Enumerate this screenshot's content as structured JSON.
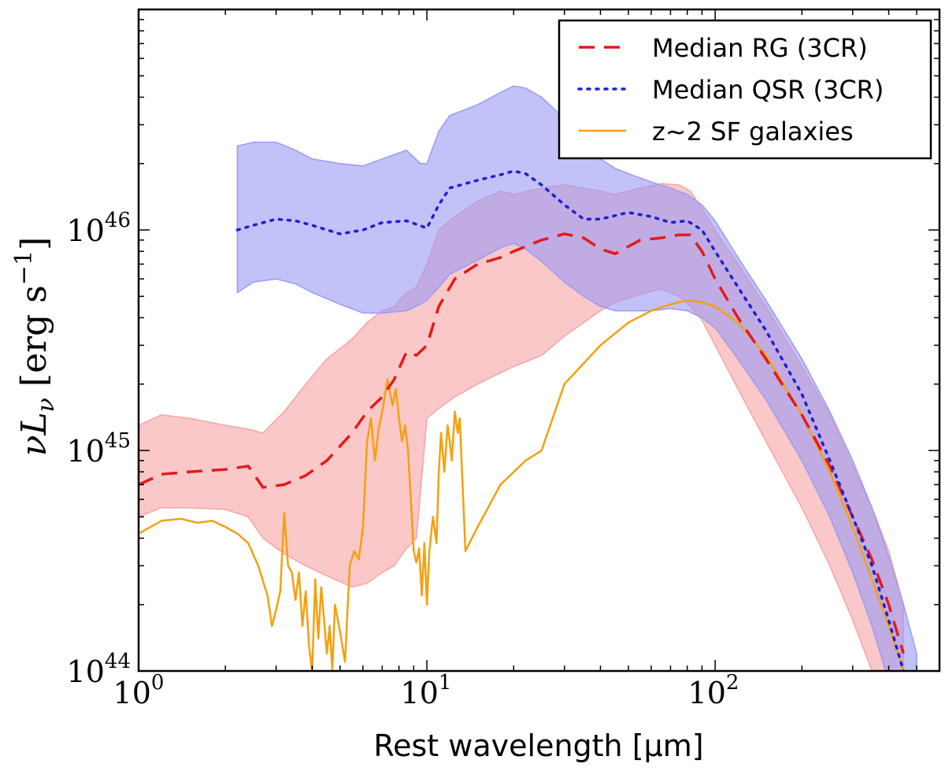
{
  "chart_data": {
    "type": "line",
    "xscale": "log",
    "yscale": "log",
    "xlim": [
      1,
      600
    ],
    "ylim": [
      1e+44,
      1e+47
    ],
    "xlabel": "Rest wavelength [μm]",
    "ylabel": "νL",
    "ylabel_sub": "ν",
    "ylabel_units": " [erg s",
    "ylabel_units_exp": "−1",
    "ylabel_units_close": "]",
    "xtick_labels": [
      {
        "value": 1,
        "base": "10",
        "exp": "0"
      },
      {
        "value": 10,
        "base": "10",
        "exp": "1"
      },
      {
        "value": 100,
        "base": "10",
        "exp": "2"
      }
    ],
    "ytick_labels": [
      {
        "value": 1e+44,
        "base": "10",
        "exp": "44"
      },
      {
        "value": 1e+45,
        "base": "10",
        "exp": "45"
      },
      {
        "value": 1e+46,
        "base": "10",
        "exp": "46"
      }
    ],
    "legend_position": "top-right",
    "colors": {
      "rg": "#e41a1c",
      "rg_band": "#f7a3a3",
      "qsr": "#1f1fd6",
      "qsr_band": "#9a9af5",
      "sf": "#f5a00f"
    },
    "series": [
      {
        "name": "Median RG (3CR)",
        "style": "dashed",
        "color_key": "rg",
        "x": [
          1,
          1.2,
          1.5,
          2,
          2.4,
          2.7,
          3.2,
          3.8,
          4.5,
          5.5,
          6.2,
          7,
          7.7,
          8.5,
          9.2,
          10,
          11,
          12.5,
          15,
          18,
          20,
          25,
          30,
          35,
          40,
          45,
          55,
          65,
          75,
          82,
          90,
          100,
          120,
          150,
          200,
          250,
          300,
          350,
          400,
          450
        ],
        "values": [
          7e+44,
          7.8e+44,
          8e+44,
          8.2e+44,
          8.5e+44,
          6.8e+44,
          7e+44,
          7.7e+44,
          9e+44,
          1.2e+45,
          1.5e+45,
          1.75e+45,
          2.1e+45,
          2.8e+45,
          2.7e+45,
          3e+45,
          4.5e+45,
          6e+45,
          7e+45,
          7.5e+45,
          8e+45,
          9e+45,
          9.6e+45,
          9.2e+45,
          8.2e+45,
          7.8e+45,
          9e+45,
          9.2e+45,
          9.5e+45,
          9.5e+45,
          8e+45,
          6e+45,
          4e+45,
          2.6e+45,
          1.45e+45,
          8.5e+44,
          5e+44,
          3.2e+44,
          2e+44,
          1.2e+44
        ]
      },
      {
        "name": "Median QSR (3CR)",
        "style": "dotted",
        "color_key": "qsr",
        "x": [
          2.2,
          2.5,
          3,
          3.5,
          4,
          5,
          6,
          7,
          8.5,
          10,
          11,
          12,
          15,
          18,
          20,
          22,
          25,
          30,
          35,
          40,
          50,
          60,
          70,
          80,
          90,
          100,
          120,
          150,
          200,
          250,
          300,
          350,
          400,
          450
        ],
        "values": [
          1e+46,
          1.05e+46,
          1.12e+46,
          1.1e+46,
          1.05e+46,
          9.6e+45,
          1e+46,
          1.08e+46,
          1.1e+46,
          1.02e+46,
          1.3e+46,
          1.55e+46,
          1.68e+46,
          1.78e+46,
          1.85e+46,
          1.8e+46,
          1.6e+46,
          1.3e+46,
          1.12e+46,
          1.12e+46,
          1.2e+46,
          1.15e+46,
          1.08e+46,
          1.1e+46,
          1e+46,
          8e+45,
          5.5e+45,
          3.5e+45,
          1.8e+45,
          9e+44,
          5e+44,
          3e+44,
          1.7e+44,
          1e+44
        ]
      },
      {
        "name": "z~2 SF galaxies",
        "style": "solid",
        "color_key": "sf",
        "x": [
          1,
          1.2,
          1.4,
          1.6,
          1.8,
          2,
          2.2,
          2.4,
          2.6,
          2.8,
          2.9,
          3,
          3.1,
          3.2,
          3.3,
          3.4,
          3.5,
          3.6,
          3.7,
          3.8,
          3.9,
          4,
          4.1,
          4.2,
          4.3,
          4.5,
          4.6,
          4.7,
          4.8,
          5,
          5.2,
          5.4,
          5.6,
          5.8,
          6,
          6.2,
          6.4,
          6.6,
          6.8,
          7,
          7.3,
          7.6,
          7.8,
          8,
          8.2,
          8.4,
          8.6,
          8.8,
          9,
          9.2,
          9.4,
          9.6,
          9.8,
          10,
          10.2,
          10.5,
          10.8,
          11,
          11.2,
          11.5,
          11.8,
          12,
          12.2,
          12.5,
          12.8,
          13,
          13.3,
          13.6,
          15,
          18,
          22,
          25,
          30,
          40,
          50,
          60,
          70,
          80,
          90,
          100,
          120,
          150,
          200,
          250,
          300,
          350,
          400,
          450
        ],
        "values": [
          4.2e+44,
          4.8e+44,
          4.9e+44,
          4.7e+44,
          4.8e+44,
          4.5e+44,
          4.2e+44,
          3.8e+44,
          3e+44,
          2.2e+44,
          1.6e+44,
          1.9e+44,
          2.3e+44,
          5.2e+44,
          3e+44,
          2.8e+44,
          2.1e+44,
          2.8e+44,
          1.6e+44,
          2.3e+44,
          1.3e+44,
          1e+44,
          2.6e+44,
          1.4e+44,
          2.4e+44,
          1.2e+44,
          1.6e+44,
          1e+44,
          2e+44,
          1.5e+44,
          1.1e+44,
          3e+44,
          3.5e+44,
          3.2e+44,
          4.5e+44,
          1.1e+45,
          1.4e+45,
          9e+44,
          1.25e+45,
          1.5e+45,
          2.1e+45,
          1.6e+45,
          1.9e+45,
          1.4e+45,
          1.1e+45,
          1.3e+45,
          1e+45,
          6e+44,
          3.5e+44,
          3.1e+44,
          3.6e+44,
          2.2e+44,
          3.8e+44,
          2e+44,
          3.5e+44,
          5e+44,
          3.8e+44,
          8e+44,
          1.2e+45,
          8e+44,
          1.3e+45,
          1.1e+45,
          9e+44,
          1.5e+45,
          1.2e+45,
          1.4e+45,
          7e+44,
          3.5e+44,
          4.5e+44,
          7e+44,
          9e+44,
          1e+45,
          2e+45,
          3e+45,
          3.8e+45,
          4.3e+45,
          4.6e+45,
          4.8e+45,
          4.7e+45,
          4.5e+45,
          3.8e+45,
          2.7e+45,
          1.45e+45,
          8e+44,
          4.5e+44,
          2.6e+44,
          1.6e+44,
          1e+44
        ]
      }
    ],
    "bands": [
      {
        "name": "RG range",
        "color_key": "rg_band",
        "x": [
          1,
          1.2,
          1.5,
          2,
          2.4,
          2.7,
          3.2,
          3.8,
          4.5,
          5.5,
          6.2,
          7,
          7.7,
          8.5,
          9.2,
          10,
          11,
          12.5,
          15,
          18,
          20,
          25,
          30,
          35,
          40,
          45,
          55,
          65,
          75,
          82,
          90,
          100,
          120,
          150,
          200,
          250,
          300,
          350,
          400,
          450
        ],
        "upper": [
          1.3e+45,
          1.45e+45,
          1.4e+45,
          1.3e+45,
          1.25e+45,
          1.2e+45,
          1.5e+45,
          2e+45,
          2.6e+45,
          3.2e+45,
          3.8e+45,
          4.3e+45,
          4.5e+45,
          5.2e+45,
          5.5e+45,
          7e+45,
          1e+46,
          1.15e+46,
          1.35e+46,
          1.5e+46,
          1.45e+46,
          1.55e+46,
          1.6e+46,
          1.55e+46,
          1.5e+46,
          1.45e+46,
          1.55e+46,
          1.62e+46,
          1.6e+46,
          1.5e+46,
          1.25e+46,
          1e+46,
          7e+45,
          4.5e+45,
          2.4e+45,
          1.45e+45,
          8.5e+44,
          5.5e+44,
          3.5e+44,
          2e+44
        ],
        "lower": [
          5e+44,
          5.5e+44,
          5.5e+44,
          5.4e+44,
          5e+44,
          4e+44,
          3.4e+44,
          3e+44,
          2.7e+44,
          2.4e+44,
          2.5e+44,
          2.8e+44,
          3e+44,
          3.6e+44,
          4e+44,
          1.4e+45,
          1.55e+45,
          1.75e+45,
          2e+45,
          2.25e+45,
          2.4e+45,
          2.7e+45,
          3.3e+45,
          3.8e+45,
          4.3e+45,
          4.7e+45,
          5.1e+45,
          5.4e+45,
          5e+45,
          4.5e+45,
          3.9e+45,
          3e+45,
          1.9e+45,
          1.1e+45,
          5.5e+44,
          3e+44,
          1.7e+44,
          1e+44,
          6e+43,
          4e+43
        ]
      },
      {
        "name": "QSR range",
        "color_key": "qsr_band",
        "x": [
          2.2,
          2.5,
          3,
          3.5,
          4,
          5,
          6,
          7,
          8.5,
          9.5,
          10,
          11,
          12,
          15,
          18,
          20,
          22,
          25,
          30,
          35,
          40,
          45,
          50,
          60,
          70,
          80,
          90,
          100,
          120,
          150,
          200,
          250,
          300,
          350,
          400,
          450,
          500
        ],
        "upper": [
          2.4e+46,
          2.5e+46,
          2.5e+46,
          2.3e+46,
          2.1e+46,
          2e+46,
          1.95e+46,
          2.1e+46,
          2.3e+46,
          2e+46,
          2e+46,
          2.8e+46,
          3.3e+46,
          3.7e+46,
          4.2e+46,
          4.5e+46,
          4.4e+46,
          4e+46,
          3.2e+46,
          2.6e+46,
          2.1e+46,
          1.9e+46,
          1.8e+46,
          1.65e+46,
          1.55e+46,
          1.45e+46,
          1.3e+46,
          1.1e+46,
          7.5e+45,
          4.8e+45,
          2.6e+45,
          1.5e+45,
          9e+44,
          5.5e+44,
          3.3e+44,
          2e+44,
          1.2e+44
        ],
        "lower": [
          5.2e+45,
          5.8e+45,
          6e+45,
          5.7e+45,
          5.2e+45,
          4.6e+45,
          4.2e+45,
          4.2e+45,
          4.3e+45,
          4.6e+45,
          4.8e+45,
          5.5e+45,
          6.3e+45,
          7.3e+45,
          8.3e+45,
          8.7e+45,
          8.2e+45,
          7.2e+45,
          5.8e+45,
          5e+45,
          4.5e+45,
          4.3e+45,
          4.3e+45,
          4.3e+45,
          4.4e+45,
          4.3e+45,
          4e+45,
          3.6e+45,
          2.6e+45,
          1.7e+45,
          9e+44,
          5e+44,
          2.8e+44,
          1.6e+44,
          9e+43,
          5e+43,
          3e+43
        ]
      }
    ]
  }
}
